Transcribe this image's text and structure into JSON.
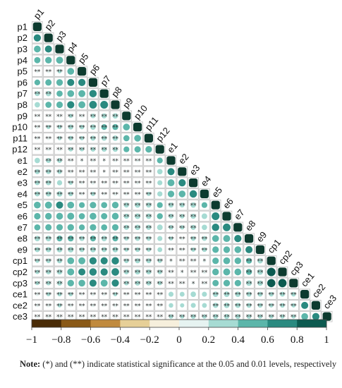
{
  "chart_data": {
    "type": "heatmap",
    "title": "",
    "variables": [
      "p1",
      "p2",
      "p3",
      "p4",
      "p5",
      "p6",
      "p7",
      "p8",
      "p9",
      "p10",
      "p11",
      "p12",
      "e1",
      "e2",
      "e3",
      "e4",
      "e5",
      "e6",
      "e7",
      "e8",
      "e9",
      "cp1",
      "cp2",
      "cp3",
      "ce1",
      "ce2",
      "ce3"
    ],
    "matrix_shape": "lower-triangular",
    "colorbar": {
      "ticks": [
        "−1",
        "−0.8",
        "−0.6",
        "−0.4",
        "−0.2",
        "0",
        "0.2",
        "0.4",
        "0.6",
        "0.8",
        "1"
      ],
      "range": [
        -1,
        1
      ],
      "colors": [
        "#4a2c08",
        "#8a5a18",
        "#c08a3e",
        "#e6cf97",
        "#f6efdc",
        "#e6f3f1",
        "#a6dbd3",
        "#5cb6aa",
        "#2a8a80",
        "#0c5a50"
      ]
    },
    "significance_markers": {
      "p05": "*",
      "p01": "**"
    },
    "values": [
      [
        1.0
      ],
      [
        0.62,
        1.0
      ],
      [
        0.55,
        0.6,
        1.0
      ],
      [
        0.46,
        0.52,
        0.58,
        1.0
      ],
      [
        0.12,
        0.15,
        0.2,
        0.55,
        1.0
      ],
      [
        0.4,
        0.48,
        0.52,
        0.6,
        0.62,
        1.0
      ],
      [
        0.3,
        0.35,
        0.45,
        0.55,
        0.58,
        0.65,
        1.0
      ],
      [
        0.35,
        0.45,
        0.5,
        0.62,
        0.58,
        0.7,
        0.72,
        1.0
      ],
      [
        0.1,
        0.12,
        0.15,
        0.2,
        0.18,
        0.25,
        0.3,
        0.35,
        1.0
      ],
      [
        0.18,
        0.2,
        0.22,
        0.3,
        0.25,
        0.35,
        0.4,
        0.42,
        0.55,
        1.0
      ],
      [
        0.15,
        0.18,
        0.2,
        0.25,
        0.22,
        0.3,
        0.32,
        0.35,
        0.45,
        0.55,
        1.0
      ],
      [
        0.12,
        0.15,
        0.18,
        0.22,
        0.2,
        0.25,
        0.28,
        0.3,
        0.4,
        0.48,
        0.52,
        1.0
      ],
      [
        0.35,
        0.3,
        0.28,
        0.12,
        0.1,
        0.15,
        0.08,
        0.12,
        0.1,
        0.12,
        0.15,
        0.4,
        1.0
      ],
      [
        0.3,
        0.28,
        0.25,
        0.15,
        0.08,
        0.12,
        0.06,
        0.1,
        0.08,
        0.1,
        0.12,
        0.35,
        0.6,
        1.0
      ],
      [
        0.28,
        0.3,
        0.32,
        0.2,
        0.12,
        0.18,
        0.1,
        0.15,
        0.12,
        0.15,
        0.18,
        0.3,
        0.58,
        0.62,
        1.0
      ],
      [
        0.3,
        0.32,
        0.35,
        0.25,
        0.15,
        0.22,
        0.12,
        0.18,
        0.15,
        0.18,
        0.2,
        0.32,
        0.52,
        0.55,
        0.65,
        1.0
      ],
      [
        0.55,
        0.58,
        0.6,
        0.55,
        0.4,
        0.5,
        0.45,
        0.52,
        0.3,
        0.35,
        0.32,
        0.4,
        0.3,
        0.28,
        0.35,
        0.4,
        1.0
      ],
      [
        0.5,
        0.52,
        0.55,
        0.58,
        0.45,
        0.55,
        0.48,
        0.55,
        0.32,
        0.38,
        0.35,
        0.42,
        0.28,
        0.25,
        0.32,
        0.38,
        0.72,
        1.0
      ],
      [
        0.45,
        0.48,
        0.5,
        0.52,
        0.42,
        0.5,
        0.45,
        0.5,
        0.3,
        0.35,
        0.32,
        0.38,
        0.25,
        0.22,
        0.3,
        0.35,
        0.65,
        0.7,
        1.0
      ],
      [
        0.35,
        0.38,
        0.4,
        0.42,
        0.3,
        0.4,
        0.35,
        0.4,
        0.22,
        0.28,
        0.25,
        0.3,
        0.2,
        0.18,
        0.25,
        0.28,
        0.55,
        0.58,
        0.62,
        1.0
      ],
      [
        0.3,
        0.32,
        0.35,
        0.38,
        0.28,
        0.35,
        0.3,
        0.35,
        0.2,
        0.25,
        0.22,
        0.28,
        0.18,
        0.15,
        0.22,
        0.25,
        0.5,
        0.52,
        0.55,
        0.6,
        1.0
      ],
      [
        0.2,
        0.25,
        0.3,
        0.55,
        0.58,
        0.62,
        0.6,
        0.65,
        0.25,
        0.3,
        0.28,
        0.22,
        0.1,
        0.08,
        0.12,
        0.15,
        0.5,
        0.55,
        0.52,
        0.4,
        0.35,
        1.0
      ],
      [
        0.22,
        0.28,
        0.32,
        0.58,
        0.6,
        0.65,
        0.62,
        0.68,
        0.28,
        0.32,
        0.3,
        0.25,
        0.12,
        0.1,
        0.15,
        0.18,
        0.52,
        0.58,
        0.55,
        0.42,
        0.38,
        0.85,
        1.0
      ],
      [
        0.2,
        0.25,
        0.3,
        0.52,
        0.55,
        0.6,
        0.58,
        0.62,
        0.25,
        0.3,
        0.28,
        0.22,
        0.1,
        0.08,
        0.12,
        0.15,
        0.48,
        0.52,
        0.5,
        0.38,
        0.35,
        0.8,
        0.82,
        1.0
      ],
      [
        0.18,
        0.2,
        0.22,
        0.2,
        0.12,
        0.18,
        0.15,
        0.2,
        0.12,
        0.15,
        0.12,
        0.18,
        0.3,
        0.28,
        0.35,
        0.3,
        0.35,
        0.38,
        0.35,
        0.3,
        0.28,
        0.25,
        0.28,
        0.25,
        1.0
      ],
      [
        0.15,
        0.18,
        0.2,
        0.18,
        0.1,
        0.15,
        0.12,
        0.18,
        0.1,
        0.12,
        0.1,
        0.15,
        0.25,
        0.22,
        0.3,
        0.28,
        0.32,
        0.35,
        0.32,
        0.28,
        0.25,
        0.22,
        0.25,
        0.22,
        0.6,
        1.0
      ],
      [
        0.12,
        0.15,
        0.18,
        0.15,
        0.08,
        0.12,
        0.1,
        0.15,
        0.08,
        0.1,
        0.08,
        0.12,
        0.22,
        0.2,
        0.25,
        0.22,
        0.28,
        0.3,
        0.28,
        0.25,
        0.22,
        0.2,
        0.22,
        0.2,
        0.55,
        0.62,
        1.0
      ]
    ],
    "significance": [
      [
        ""
      ],
      [
        "",
        ""
      ],
      [
        "",
        "",
        ""
      ],
      [
        "",
        "",
        "",
        ""
      ],
      [
        "**",
        "**",
        "**",
        "",
        ""
      ],
      [
        "",
        "",
        "",
        "",
        "",
        ""
      ],
      [
        "**",
        "**",
        "",
        "",
        "",
        "",
        ""
      ],
      [
        "",
        "",
        "",
        "",
        "",
        "",
        "",
        ""
      ],
      [
        "**",
        "**",
        "**",
        "**",
        "**",
        "**",
        "**",
        "**",
        ""
      ],
      [
        "**",
        "**",
        "**",
        "**",
        "**",
        "**",
        "**",
        "**",
        "",
        ""
      ],
      [
        "**",
        "**",
        "**",
        "**",
        "**",
        "**",
        "**",
        "**",
        "",
        "",
        ""
      ],
      [
        "**",
        "**",
        "**",
        "**",
        "**",
        "**",
        "**",
        "**",
        "",
        "",
        "",
        ""
      ],
      [
        "",
        "**",
        "**",
        "**",
        "*",
        "**",
        "*",
        "**",
        "**",
        "**",
        "**",
        "",
        ""
      ],
      [
        "**",
        "**",
        "**",
        "**",
        "**",
        "**",
        "*",
        "**",
        "**",
        "**",
        "**",
        "",
        "",
        ""
      ],
      [
        "**",
        "**",
        "",
        "**",
        "**",
        "**",
        "**",
        "**",
        "**",
        "**",
        "**",
        "",
        "",
        "",
        ""
      ],
      [
        "**",
        "**",
        "**",
        "**",
        "**",
        "**",
        "**",
        "**",
        "**",
        "**",
        "**",
        "",
        "",
        "",
        "",
        ""
      ],
      [
        "",
        "",
        "",
        "",
        "",
        "",
        "",
        "",
        "**",
        "**",
        "**",
        "",
        "**",
        "**",
        "**",
        "",
        ""
      ],
      [
        "",
        "",
        "",
        "",
        "",
        "",
        "",
        "",
        "**",
        "**",
        "**",
        "",
        "**",
        "**",
        "**",
        "",
        "",
        ""
      ],
      [
        "",
        "",
        "",
        "",
        "",
        "",
        "",
        "",
        "**",
        "**",
        "**",
        "",
        "**",
        "**",
        "**",
        "",
        "",
        "",
        ""
      ],
      [
        "**",
        "**",
        "**",
        "**",
        "**",
        "**",
        "**",
        "**",
        "**",
        "**",
        "**",
        "",
        "**",
        "**",
        "**",
        "**",
        "",
        "",
        "",
        ""
      ],
      [
        "**",
        "**",
        "**",
        "**",
        "**",
        "**",
        "**",
        "**",
        "**",
        "**",
        "**",
        "",
        "**",
        "**",
        "**",
        "**",
        "",
        "",
        "",
        "",
        ""
      ],
      [
        "**",
        "**",
        "**",
        "",
        "",
        "",
        "",
        "",
        "**",
        "**",
        "**",
        "**",
        "*",
        "**",
        "**",
        "*",
        "",
        "",
        "",
        "**",
        "**",
        ""
      ],
      [
        "**",
        "**",
        "**",
        "",
        "",
        "",
        "",
        "",
        "**",
        "**",
        "**",
        "**",
        "**",
        "*",
        "**",
        "**",
        "",
        "",
        "",
        "**",
        "**",
        "",
        ""
      ],
      [
        "**",
        "**",
        "**",
        "",
        "",
        "",
        "",
        "",
        "**",
        "**",
        "**",
        "**",
        "**",
        "**",
        "*",
        "**",
        "",
        "",
        "",
        "**",
        "**",
        "",
        "",
        ""
      ],
      [
        "**",
        "**",
        "**",
        "**",
        "**",
        "**",
        "**",
        "**",
        "**",
        "**",
        "**",
        "**",
        "",
        "",
        "",
        "",
        "**",
        "**",
        "**",
        "**",
        "**",
        "**",
        "**",
        "**",
        ""
      ],
      [
        "**",
        "**",
        "**",
        "**",
        "**",
        "**",
        "**",
        "**",
        "**",
        "**",
        "**",
        "**",
        "",
        "",
        "",
        "",
        "**",
        "**",
        "**",
        "**",
        "**",
        "**",
        "**",
        "**",
        "",
        ""
      ],
      [
        "**",
        "**",
        "**",
        "**",
        "**",
        "**",
        "**",
        "**",
        "**",
        "**",
        "**",
        "**",
        "**",
        "**",
        "**",
        "**",
        "**",
        "**",
        "**",
        "**",
        "**",
        "**",
        "**",
        "**",
        "",
        "",
        ""
      ]
    ]
  },
  "note": {
    "label": "Note:",
    "text": " (*) and (**) indicate statistical significance at the 0.05 and 0.01 levels, respectively"
  }
}
